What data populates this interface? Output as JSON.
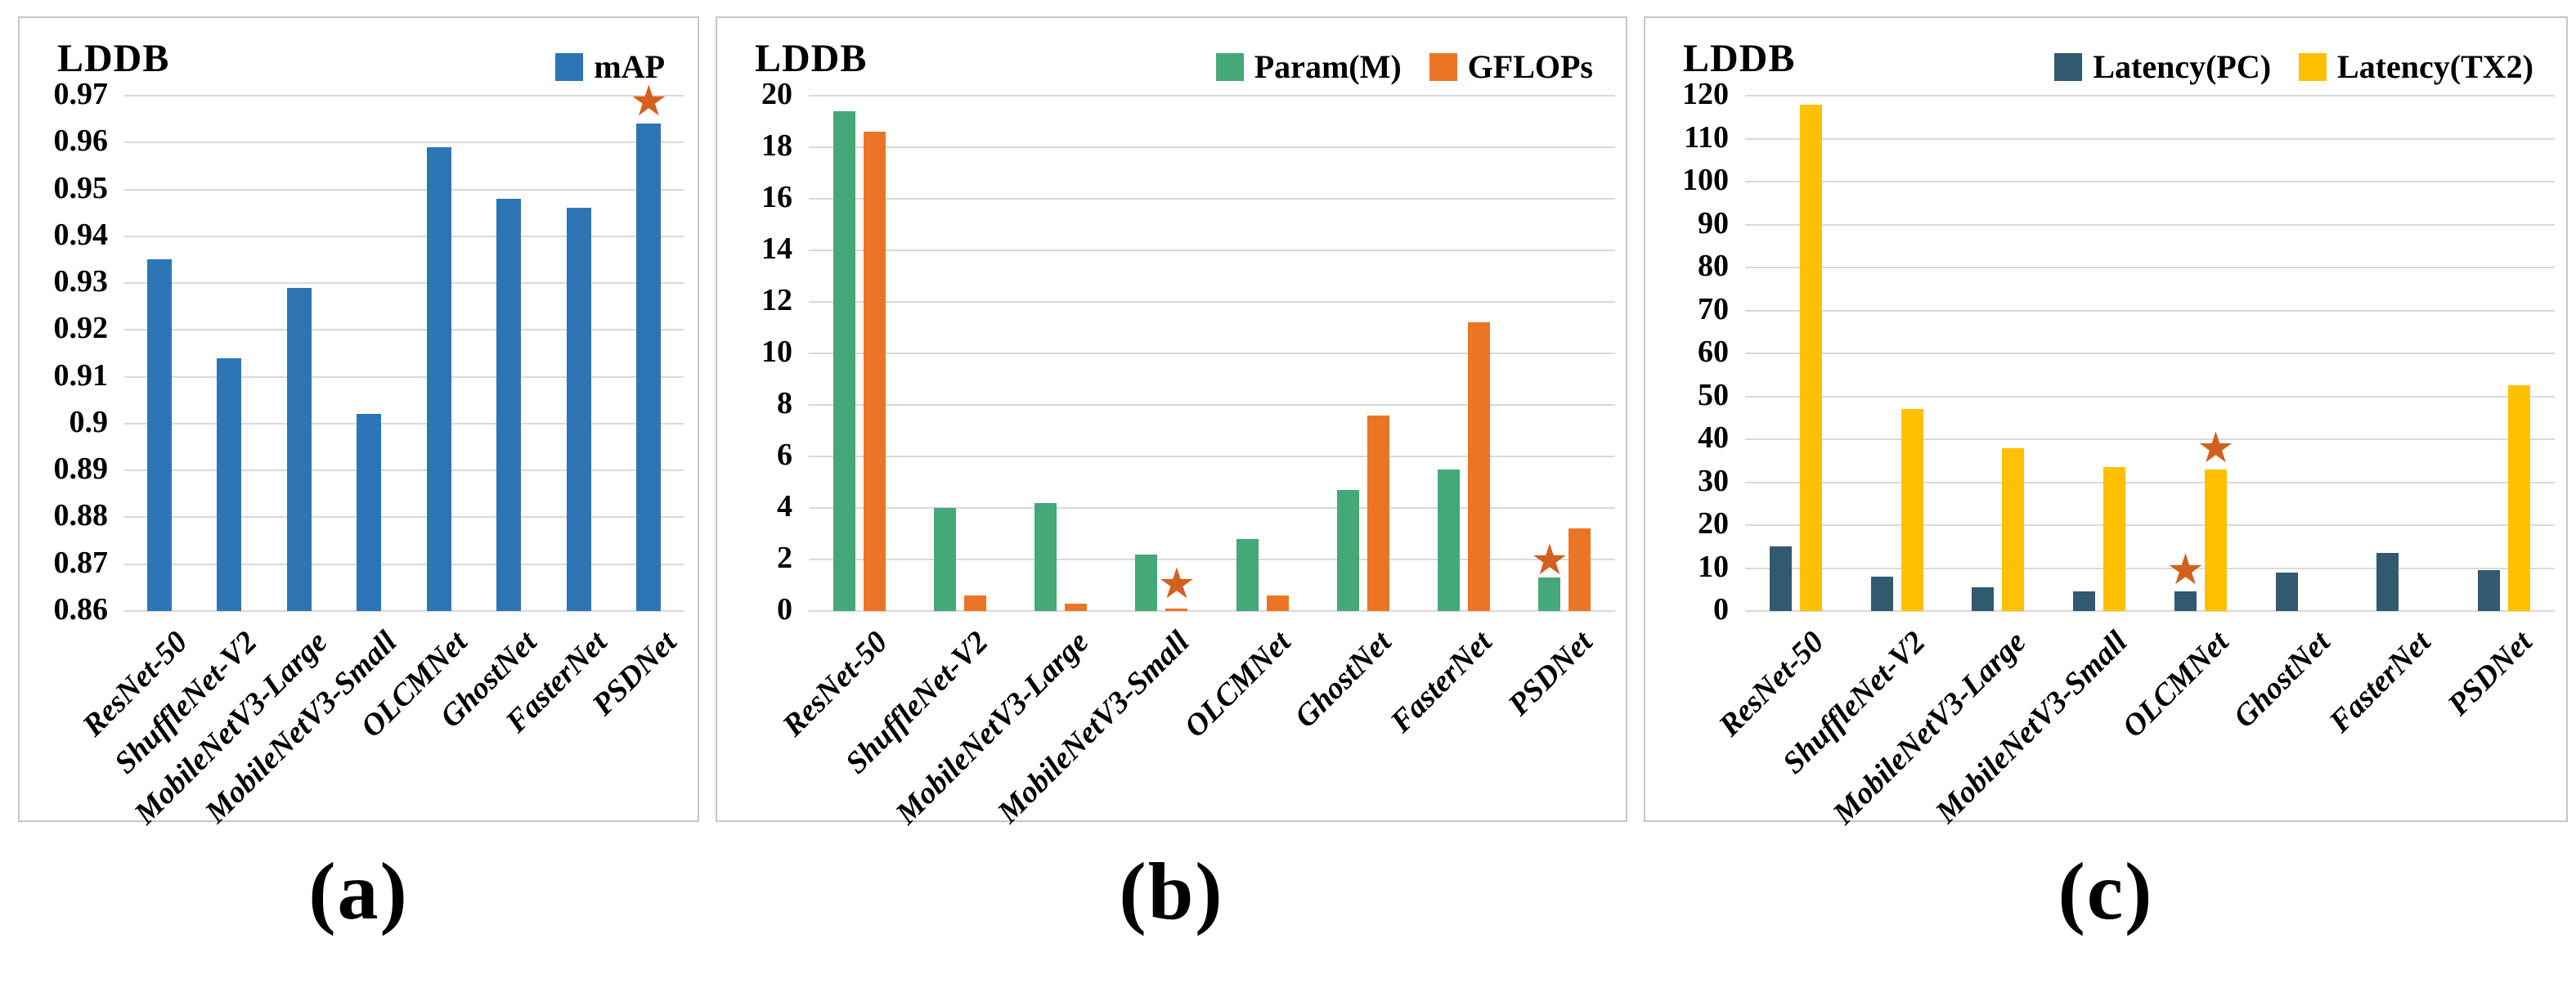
{
  "colors": {
    "bar_blue": "#2E75B6",
    "bar_green": "#45A878",
    "bar_orange": "#EB7524",
    "bar_slate": "#315A70",
    "bar_yellow": "#FFC000",
    "star": "#D2601F",
    "gridline": "#D9D9D9",
    "panel_border": "#C6C6C6",
    "text": "#000000",
    "background": "#FFFFFF"
  },
  "icons": {
    "best_star": "★"
  },
  "chart_data": [
    {
      "type": "bar",
      "title": "LDDB",
      "caption": "(a)",
      "legend_position": "top-right",
      "grid": true,
      "categories": [
        "ResNet-50",
        "ShuffleNet-V2",
        "MobileNetV3-Large",
        "MobileNetV3-Small",
        "OLCMNet",
        "GhostNet",
        "FasterNet",
        "PSDNet"
      ],
      "series": [
        {
          "name": "mAP",
          "color": "#2E75B6",
          "values": [
            0.935,
            0.914,
            0.929,
            0.902,
            0.959,
            0.948,
            0.946,
            0.964
          ]
        }
      ],
      "ylim": [
        0.86,
        0.97
      ],
      "ytick_step": 0.01,
      "yticks": [
        "0.97",
        "0.96",
        "0.95",
        "0.94",
        "0.93",
        "0.92",
        "0.91",
        "0.9",
        "0.89",
        "0.88",
        "0.87",
        "0.86"
      ],
      "xlabel": "",
      "ylabel": "",
      "stars": [
        {
          "category": "PSDNet",
          "series": "mAP",
          "value": 0.9685
        }
      ]
    },
    {
      "type": "bar",
      "title": "LDDB",
      "caption": "(b)",
      "legend_position": "top-right",
      "grid": true,
      "categories": [
        "ResNet-50",
        "ShuffleNet-V2",
        "MobileNetV3-Large",
        "MobileNetV3-Small",
        "OLCMNet",
        "GhostNet",
        "FasterNet",
        "PSDNet"
      ],
      "series": [
        {
          "name": "Param(M)",
          "color": "#45A878",
          "values": [
            19.4,
            4.0,
            4.2,
            2.2,
            2.8,
            4.7,
            5.5,
            1.3
          ]
        },
        {
          "name": "GFLOPs",
          "color": "#EB7524",
          "values": [
            18.6,
            0.6,
            0.3,
            0.1,
            0.6,
            7.6,
            11.2,
            3.2
          ]
        }
      ],
      "ylim": [
        0,
        20
      ],
      "ytick_step": 2,
      "yticks": [
        "20",
        "18",
        "16",
        "14",
        "12",
        "10",
        "8",
        "6",
        "4",
        "2",
        "0"
      ],
      "xlabel": "",
      "ylabel": "",
      "stars": [
        {
          "category": "MobileNetV3-Small",
          "series": "GFLOPs",
          "value": 1.0
        },
        {
          "category": "PSDNet",
          "series": "Param(M)",
          "value": 1.9
        }
      ]
    },
    {
      "type": "bar",
      "title": "LDDB",
      "caption": "(c)",
      "legend_position": "top-right",
      "grid": true,
      "categories": [
        "ResNet-50",
        "ShuffleNet-V2",
        "MobileNetV3-Large",
        "MobileNetV3-Small",
        "OLCMNet",
        "GhostNet",
        "FasterNet",
        "PSDNet"
      ],
      "series": [
        {
          "name": "Latency(PC)",
          "color": "#315A70",
          "values": [
            15,
            8,
            5.5,
            4.5,
            4.5,
            9,
            13.5,
            9.5
          ]
        },
        {
          "name": "Latency(TX2)",
          "color": "#FFC000",
          "values": [
            118,
            47,
            38,
            33.5,
            33,
            null,
            null,
            52.5
          ]
        }
      ],
      "ylim": [
        0,
        120
      ],
      "ytick_step": 10,
      "yticks": [
        "120",
        "110",
        "100",
        "90",
        "80",
        "70",
        "60",
        "50",
        "40",
        "30",
        "20",
        "10",
        "0"
      ],
      "xlabel": "",
      "ylabel": "",
      "stars": [
        {
          "category": "OLCMNet",
          "series": "Latency(PC)",
          "value": 9.2
        },
        {
          "category": "OLCMNet",
          "series": "Latency(TX2)",
          "value": 37.5
        }
      ]
    }
  ]
}
